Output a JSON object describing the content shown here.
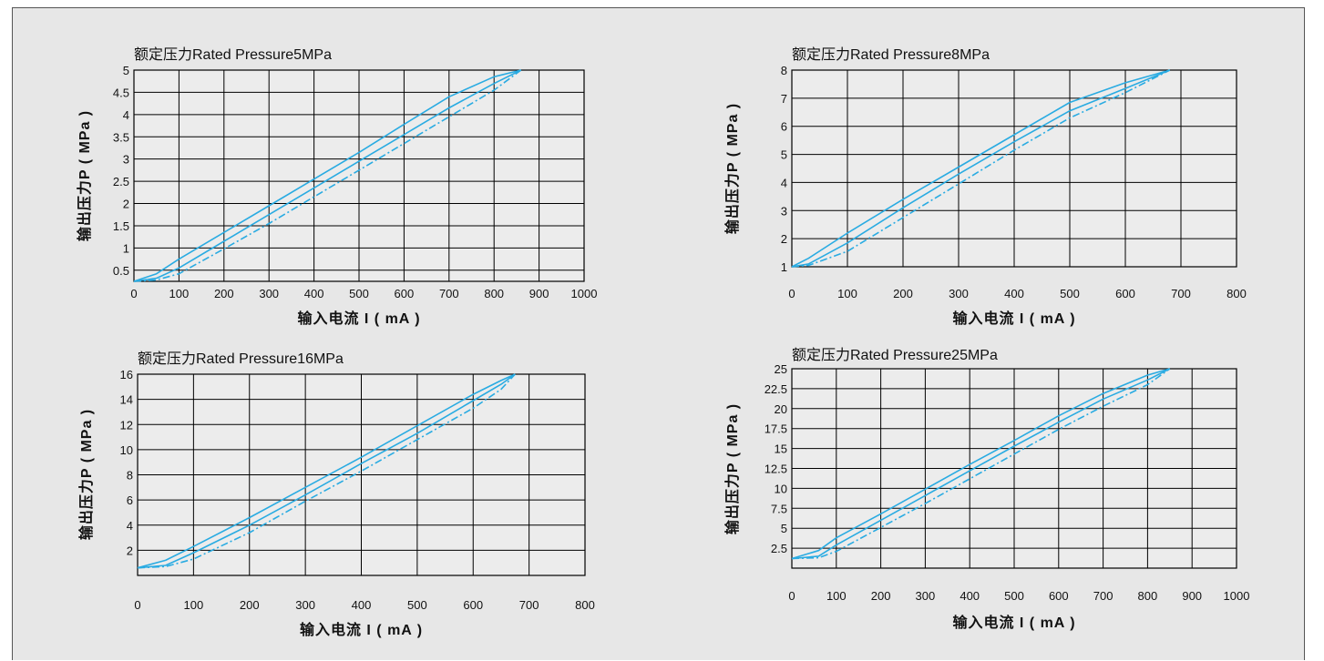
{
  "colors": {
    "panel_bg": "#e7e7e7",
    "curve": "#29abe2",
    "grid": "#000000"
  },
  "chart_data": [
    {
      "type": "line",
      "title": "额定压力Rated Pressure5MPa",
      "xlabel": "输入电流 I ( mA )",
      "ylabel": "输出压力P ( MPa )",
      "xlim": [
        0,
        1000
      ],
      "ylim": [
        0.25,
        5
      ],
      "xticks": [
        0,
        100,
        200,
        300,
        400,
        500,
        600,
        700,
        800,
        900,
        1000
      ],
      "xtick_labels": [
        "0",
        "100",
        "200",
        "300",
        "400",
        "500",
        "600",
        "700",
        "800",
        "900",
        "1000"
      ],
      "yticks": [
        0.5,
        1,
        1.5,
        2,
        2.5,
        3,
        3.5,
        4,
        4.5,
        5
      ],
      "ytick_labels": [
        "0.5",
        "1",
        "1.5",
        "2",
        "2.5",
        "3",
        "3.5",
        "4",
        "4.5",
        "5"
      ],
      "grid": true,
      "series": [
        {
          "style": "solid",
          "x": [
            0,
            50,
            100,
            200,
            300,
            400,
            500,
            600,
            700,
            800,
            860
          ],
          "y": [
            0.25,
            0.42,
            0.75,
            1.35,
            1.95,
            2.55,
            3.15,
            3.78,
            4.4,
            4.85,
            5.0
          ]
        },
        {
          "style": "solid",
          "x": [
            0,
            50,
            100,
            200,
            300,
            400,
            500,
            600,
            700,
            800,
            860
          ],
          "y": [
            0.25,
            0.32,
            0.55,
            1.15,
            1.75,
            2.35,
            2.95,
            3.55,
            4.15,
            4.7,
            5.0
          ]
        },
        {
          "style": "dashdot",
          "x": [
            0,
            50,
            100,
            200,
            300,
            400,
            500,
            600,
            700,
            800,
            860
          ],
          "y": [
            0.25,
            0.28,
            0.42,
            0.98,
            1.55,
            2.15,
            2.75,
            3.35,
            3.95,
            4.55,
            5.0
          ]
        }
      ]
    },
    {
      "type": "line",
      "title": "额定压力Rated Pressure8MPa",
      "xlabel": "输入电流 I ( mA )",
      "ylabel": "输出压力P ( MPa )",
      "xlim": [
        0,
        800
      ],
      "ylim": [
        1,
        8
      ],
      "xticks": [
        0,
        100,
        200,
        300,
        400,
        500,
        600,
        700,
        800
      ],
      "xtick_labels": [
        "0",
        "100",
        "200",
        "300",
        "400",
        "500",
        "600",
        "700",
        "800"
      ],
      "yticks": [
        1,
        2,
        3,
        4,
        5,
        6,
        7,
        8
      ],
      "ytick_labels": [
        "1",
        "2",
        "3",
        "4",
        "5",
        "6",
        "7",
        "8"
      ],
      "grid": true,
      "series": [
        {
          "style": "solid",
          "x": [
            0,
            30,
            100,
            200,
            300,
            400,
            500,
            600,
            680
          ],
          "y": [
            1.0,
            1.3,
            2.2,
            3.4,
            4.55,
            5.7,
            6.85,
            7.55,
            8.0
          ]
        },
        {
          "style": "solid",
          "x": [
            0,
            30,
            100,
            200,
            300,
            400,
            500,
            600,
            680
          ],
          "y": [
            1.0,
            1.1,
            1.85,
            3.1,
            4.3,
            5.45,
            6.55,
            7.35,
            8.0
          ]
        },
        {
          "style": "dashdot",
          "x": [
            0,
            30,
            100,
            200,
            300,
            400,
            500,
            600,
            680
          ],
          "y": [
            1.0,
            1.05,
            1.55,
            2.75,
            3.95,
            5.15,
            6.3,
            7.2,
            8.0
          ]
        }
      ]
    },
    {
      "type": "line",
      "title": "额定压力Rated Pressure16MPa",
      "xlabel": "输入电流 I ( mA )",
      "ylabel": "输出压力P ( MPa )",
      "xlim": [
        0,
        800
      ],
      "ylim": [
        0,
        16
      ],
      "xticks": [
        0,
        100,
        200,
        300,
        400,
        500,
        600,
        700,
        800
      ],
      "xtick_labels": [
        "0",
        "100",
        "200",
        "300",
        "400",
        "500",
        "600",
        "700",
        "800"
      ],
      "yticks": [
        2,
        4,
        6,
        8,
        10,
        12,
        14,
        16
      ],
      "ytick_labels": [
        "2",
        "4",
        "6",
        "8",
        "10",
        "12",
        "14",
        "16"
      ],
      "grid": true,
      "series": [
        {
          "style": "solid",
          "x": [
            0,
            50,
            100,
            200,
            300,
            400,
            500,
            600,
            650,
            675
          ],
          "y": [
            0.6,
            1.2,
            2.3,
            4.6,
            7.0,
            9.4,
            11.9,
            14.4,
            15.5,
            16.0
          ]
        },
        {
          "style": "solid",
          "x": [
            0,
            50,
            100,
            200,
            300,
            400,
            500,
            600,
            650,
            675
          ],
          "y": [
            0.6,
            0.8,
            1.8,
            4.0,
            6.4,
            8.9,
            11.3,
            13.9,
            15.2,
            16.0
          ]
        },
        {
          "style": "dashdot",
          "x": [
            0,
            50,
            100,
            200,
            300,
            400,
            500,
            600,
            650,
            675
          ],
          "y": [
            0.6,
            0.7,
            1.3,
            3.4,
            5.9,
            8.3,
            10.8,
            13.3,
            14.8,
            16.0
          ]
        }
      ]
    },
    {
      "type": "line",
      "title": "额定压力Rated Pressure25MPa",
      "xlabel": "输入电流 I ( mA )",
      "ylabel": "输出压力P ( MPa )",
      "xlim": [
        0,
        1000
      ],
      "ylim": [
        0,
        25
      ],
      "xticks": [
        0,
        100,
        200,
        300,
        400,
        500,
        600,
        700,
        800,
        900,
        1000
      ],
      "xtick_labels": [
        "0",
        "100",
        "200",
        "300",
        "400",
        "500",
        "600",
        "700",
        "800",
        "900",
        "1000"
      ],
      "yticks": [
        2.5,
        5,
        7.5,
        10,
        12.5,
        15,
        17.5,
        20,
        22.5,
        25
      ],
      "ytick_labels": [
        "2.5",
        "5",
        "7.5",
        "10",
        "12.5",
        "15",
        "17.5",
        "20",
        "22.5",
        "25"
      ],
      "grid": true,
      "series": [
        {
          "style": "solid",
          "x": [
            0,
            60,
            100,
            200,
            300,
            400,
            500,
            600,
            700,
            800,
            850
          ],
          "y": [
            1.2,
            2.2,
            3.8,
            6.8,
            9.9,
            13.0,
            16.0,
            19.1,
            21.9,
            24.2,
            25.0
          ]
        },
        {
          "style": "solid",
          "x": [
            0,
            60,
            100,
            200,
            300,
            400,
            500,
            600,
            700,
            800,
            850
          ],
          "y": [
            1.2,
            1.5,
            2.9,
            6.0,
            9.1,
            12.2,
            15.3,
            18.3,
            21.2,
            23.6,
            25.0
          ]
        },
        {
          "style": "dashdot",
          "x": [
            0,
            60,
            100,
            200,
            300,
            400,
            500,
            600,
            700,
            800,
            850
          ],
          "y": [
            1.2,
            1.3,
            2.1,
            5.1,
            8.1,
            11.2,
            14.3,
            17.4,
            20.3,
            23.0,
            25.0
          ]
        }
      ]
    }
  ]
}
